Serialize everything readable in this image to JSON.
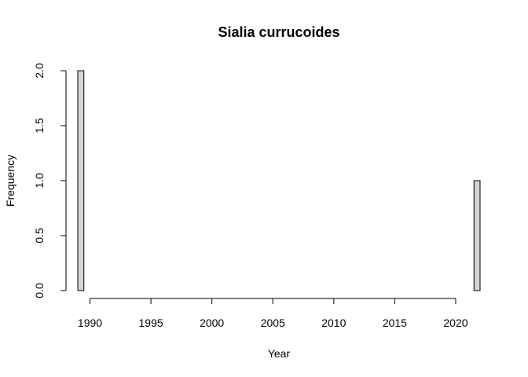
{
  "chart_data": {
    "type": "bar",
    "title": "Sialia currucoides",
    "xlabel": "Year",
    "ylabel": "Frequency",
    "bin_width": 0.5,
    "bins_start": 1989,
    "bins_end": 2022,
    "bars": [
      {
        "x0": 1989,
        "x1": 1989.5,
        "value": 2
      },
      {
        "x0": 2021.5,
        "x1": 2022,
        "value": 1
      }
    ],
    "x_ticks": [
      "1990",
      "1995",
      "2000",
      "2005",
      "2010",
      "2015",
      "2020"
    ],
    "y_ticks": [
      "0.0",
      "0.5",
      "1.0",
      "1.5",
      "2.0"
    ],
    "xlim": [
      1989,
      2022
    ],
    "ylim": [
      0,
      2
    ],
    "bar_fill": "#d3d3d3",
    "bar_stroke": "#000000",
    "grid": false
  }
}
